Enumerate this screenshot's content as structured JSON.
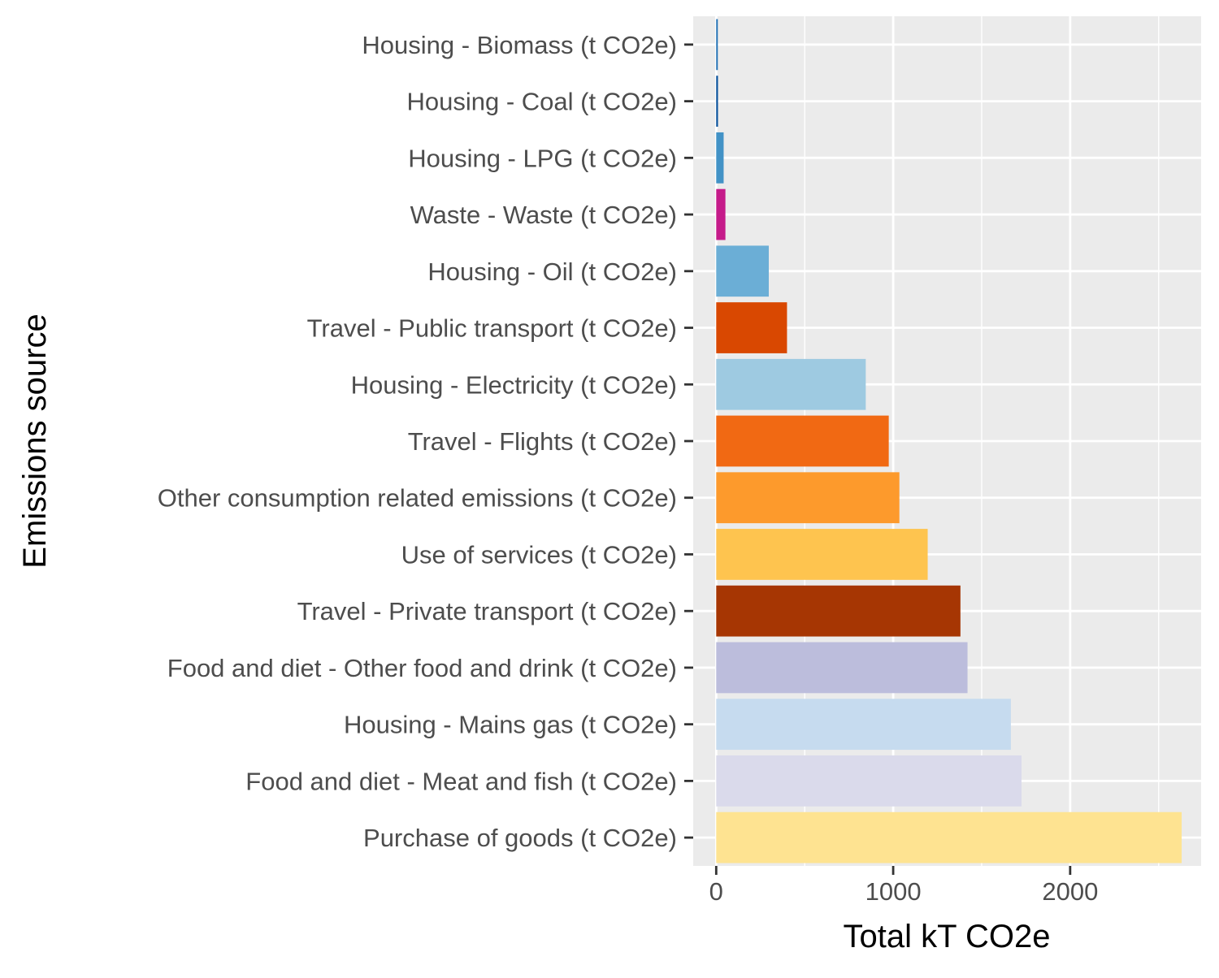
{
  "chart_data": {
    "type": "bar",
    "orientation": "horizontal",
    "xlabel": "Total kT CO2e",
    "ylabel": "Emissions source",
    "xlim": [
      -130,
      2740
    ],
    "xticks": [
      0,
      1000,
      2000
    ],
    "xtick_labels": [
      "0",
      "1000",
      "2000"
    ],
    "x_minor_gridlines": [
      500,
      1500,
      2500
    ],
    "grid": true,
    "legend": "none",
    "background": "#ebebeb",
    "categories": [
      "Housing - Biomass (t CO2e)",
      "Housing - Coal (t CO2e)",
      "Housing - LPG (t CO2e)",
      "Waste - Waste (t CO2e)",
      "Housing - Oil (t CO2e)",
      "Travel - Public transport (t CO2e)",
      "Housing - Electricity (t CO2e)",
      "Travel - Flights (t CO2e)",
      "Other consumption related emissions (t CO2e)",
      "Use of services (t CO2e)",
      "Travel - Private transport (t CO2e)",
      "Food and diet - Other food and drink (t CO2e)",
      "Housing - Mains gas (t CO2e)",
      "Food and diet - Meat and fish (t CO2e)",
      "Purchase of goods (t CO2e)"
    ],
    "values": [
      9,
      10,
      42,
      52,
      297,
      400,
      845,
      975,
      1035,
      1195,
      1380,
      1420,
      1665,
      1725,
      2630
    ],
    "colors": [
      "#2171b5",
      "#08519c",
      "#4292c6",
      "#c51b8a",
      "#6baed6",
      "#d94801",
      "#9ecae1",
      "#f16913",
      "#fd9a2c",
      "#fec44f",
      "#a63603",
      "#bcbddc",
      "#c6dbef",
      "#dadaeb",
      "#fee391"
    ]
  }
}
